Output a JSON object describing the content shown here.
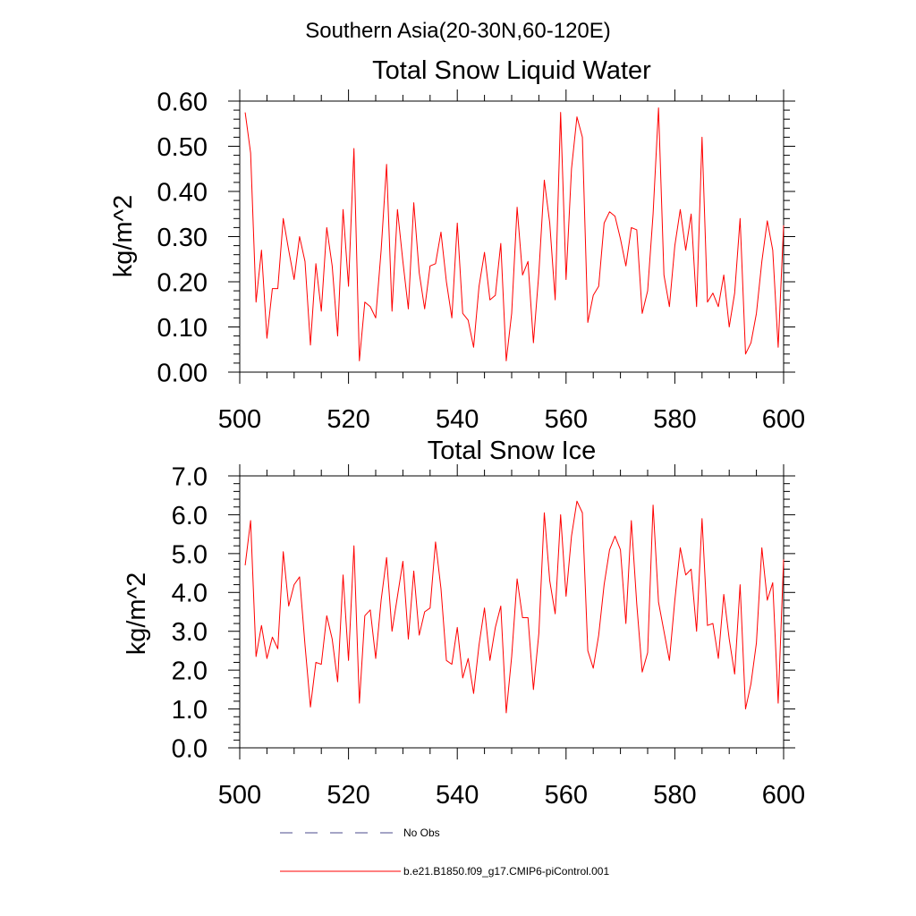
{
  "suptitle": "Southern Asia(20-30N,60-120E)",
  "legend": {
    "obs_label": "No Obs",
    "model_label": "b.e21.B1850.f09_g17.CMIP6-piControl.001",
    "obs_color": "#4b4b8c",
    "model_color": "#ff0000"
  },
  "chart_data": [
    {
      "type": "line",
      "title": "Total Snow Liquid Water",
      "xlabel": "",
      "ylabel": "kg/m^2",
      "xlim": [
        500,
        600
      ],
      "ylim": [
        0.0,
        0.6
      ],
      "xticks": [
        "500",
        "520",
        "540",
        "560",
        "580",
        "600"
      ],
      "yticks": [
        "0.00",
        "0.10",
        "0.20",
        "0.30",
        "0.40",
        "0.50",
        "0.60"
      ],
      "series": [
        {
          "name": "b.e21.B1850.f09_g17.CMIP6-piControl.001",
          "color": "#ff0000",
          "x": [
            501,
            502,
            503,
            504,
            505,
            506,
            507,
            508,
            509,
            510,
            511,
            512,
            513,
            514,
            515,
            516,
            517,
            518,
            519,
            520,
            521,
            522,
            523,
            524,
            525,
            526,
            527,
            528,
            529,
            530,
            531,
            532,
            533,
            534,
            535,
            536,
            537,
            538,
            539,
            540,
            541,
            542,
            543,
            544,
            545,
            546,
            547,
            548,
            549,
            550,
            551,
            552,
            553,
            554,
            555,
            556,
            557,
            558,
            559,
            560,
            561,
            562,
            563,
            564,
            565,
            566,
            567,
            568,
            569,
            570,
            571,
            572,
            573,
            574,
            575,
            576,
            577,
            578,
            579,
            580,
            581,
            582,
            583,
            584,
            585,
            586,
            587,
            588,
            589,
            590,
            591,
            592,
            593,
            594,
            595,
            596,
            597,
            598,
            599,
            600
          ],
          "values": [
            0.575,
            0.485,
            0.155,
            0.27,
            0.075,
            0.185,
            0.185,
            0.34,
            0.27,
            0.205,
            0.3,
            0.245,
            0.06,
            0.24,
            0.135,
            0.32,
            0.235,
            0.08,
            0.36,
            0.19,
            0.495,
            0.025,
            0.155,
            0.145,
            0.12,
            0.27,
            0.46,
            0.135,
            0.36,
            0.245,
            0.14,
            0.375,
            0.22,
            0.14,
            0.235,
            0.24,
            0.31,
            0.2,
            0.12,
            0.33,
            0.13,
            0.115,
            0.055,
            0.19,
            0.265,
            0.16,
            0.17,
            0.285,
            0.025,
            0.13,
            0.365,
            0.215,
            0.245,
            0.065,
            0.22,
            0.425,
            0.33,
            0.16,
            0.575,
            0.205,
            0.45,
            0.565,
            0.52,
            0.11,
            0.17,
            0.19,
            0.33,
            0.355,
            0.345,
            0.295,
            0.235,
            0.32,
            0.315,
            0.13,
            0.18,
            0.35,
            0.585,
            0.215,
            0.145,
            0.28,
            0.36,
            0.27,
            0.35,
            0.145,
            0.52,
            0.155,
            0.175,
            0.145,
            0.215,
            0.1,
            0.175,
            0.34,
            0.04,
            0.065,
            0.13,
            0.245,
            0.335,
            0.27,
            0.055,
            0.325
          ]
        }
      ]
    },
    {
      "type": "line",
      "title": "Total Snow Ice",
      "xlabel": "",
      "ylabel": "kg/m^2",
      "xlim": [
        500,
        600
      ],
      "ylim": [
        0.0,
        7.0
      ],
      "xticks": [
        "500",
        "520",
        "540",
        "560",
        "580",
        "600"
      ],
      "yticks": [
        "0.0",
        "1.0",
        "2.0",
        "3.0",
        "4.0",
        "5.0",
        "6.0",
        "7.0"
      ],
      "series": [
        {
          "name": "b.e21.B1850.f09_g17.CMIP6-piControl.001",
          "color": "#ff0000",
          "x": [
            501,
            502,
            503,
            504,
            505,
            506,
            507,
            508,
            509,
            510,
            511,
            512,
            513,
            514,
            515,
            516,
            517,
            518,
            519,
            520,
            521,
            522,
            523,
            524,
            525,
            526,
            527,
            528,
            529,
            530,
            531,
            532,
            533,
            534,
            535,
            536,
            537,
            538,
            539,
            540,
            541,
            542,
            543,
            544,
            545,
            546,
            547,
            548,
            549,
            550,
            551,
            552,
            553,
            554,
            555,
            556,
            557,
            558,
            559,
            560,
            561,
            562,
            563,
            564,
            565,
            566,
            567,
            568,
            569,
            570,
            571,
            572,
            573,
            574,
            575,
            576,
            577,
            578,
            579,
            580,
            581,
            582,
            583,
            584,
            585,
            586,
            587,
            588,
            589,
            590,
            591,
            592,
            593,
            594,
            595,
            596,
            597,
            598,
            599,
            600
          ],
          "values": [
            4.7,
            5.85,
            2.35,
            3.15,
            2.3,
            2.85,
            2.55,
            5.05,
            3.65,
            4.2,
            4.4,
            2.65,
            1.05,
            2.2,
            2.15,
            3.4,
            2.8,
            1.7,
            4.45,
            2.25,
            5.2,
            1.15,
            3.4,
            3.55,
            2.3,
            3.8,
            4.9,
            3.0,
            3.9,
            4.8,
            2.8,
            4.55,
            2.9,
            3.5,
            3.6,
            5.3,
            4.1,
            2.25,
            2.15,
            3.1,
            1.8,
            2.3,
            1.4,
            2.65,
            3.6,
            2.25,
            3.1,
            3.65,
            0.9,
            2.35,
            4.35,
            3.35,
            3.35,
            1.5,
            2.95,
            6.05,
            4.3,
            3.45,
            6.0,
            3.9,
            5.45,
            6.35,
            6.05,
            2.5,
            2.05,
            2.9,
            4.2,
            5.1,
            5.45,
            5.1,
            3.2,
            5.85,
            3.7,
            1.95,
            2.45,
            6.25,
            3.75,
            3.0,
            2.25,
            3.8,
            5.15,
            4.45,
            4.6,
            3.0,
            5.9,
            3.15,
            3.2,
            2.3,
            3.95,
            2.8,
            1.9,
            4.2,
            1.0,
            1.65,
            2.7,
            5.15,
            3.8,
            4.25,
            1.15,
            4.85
          ]
        }
      ]
    }
  ]
}
